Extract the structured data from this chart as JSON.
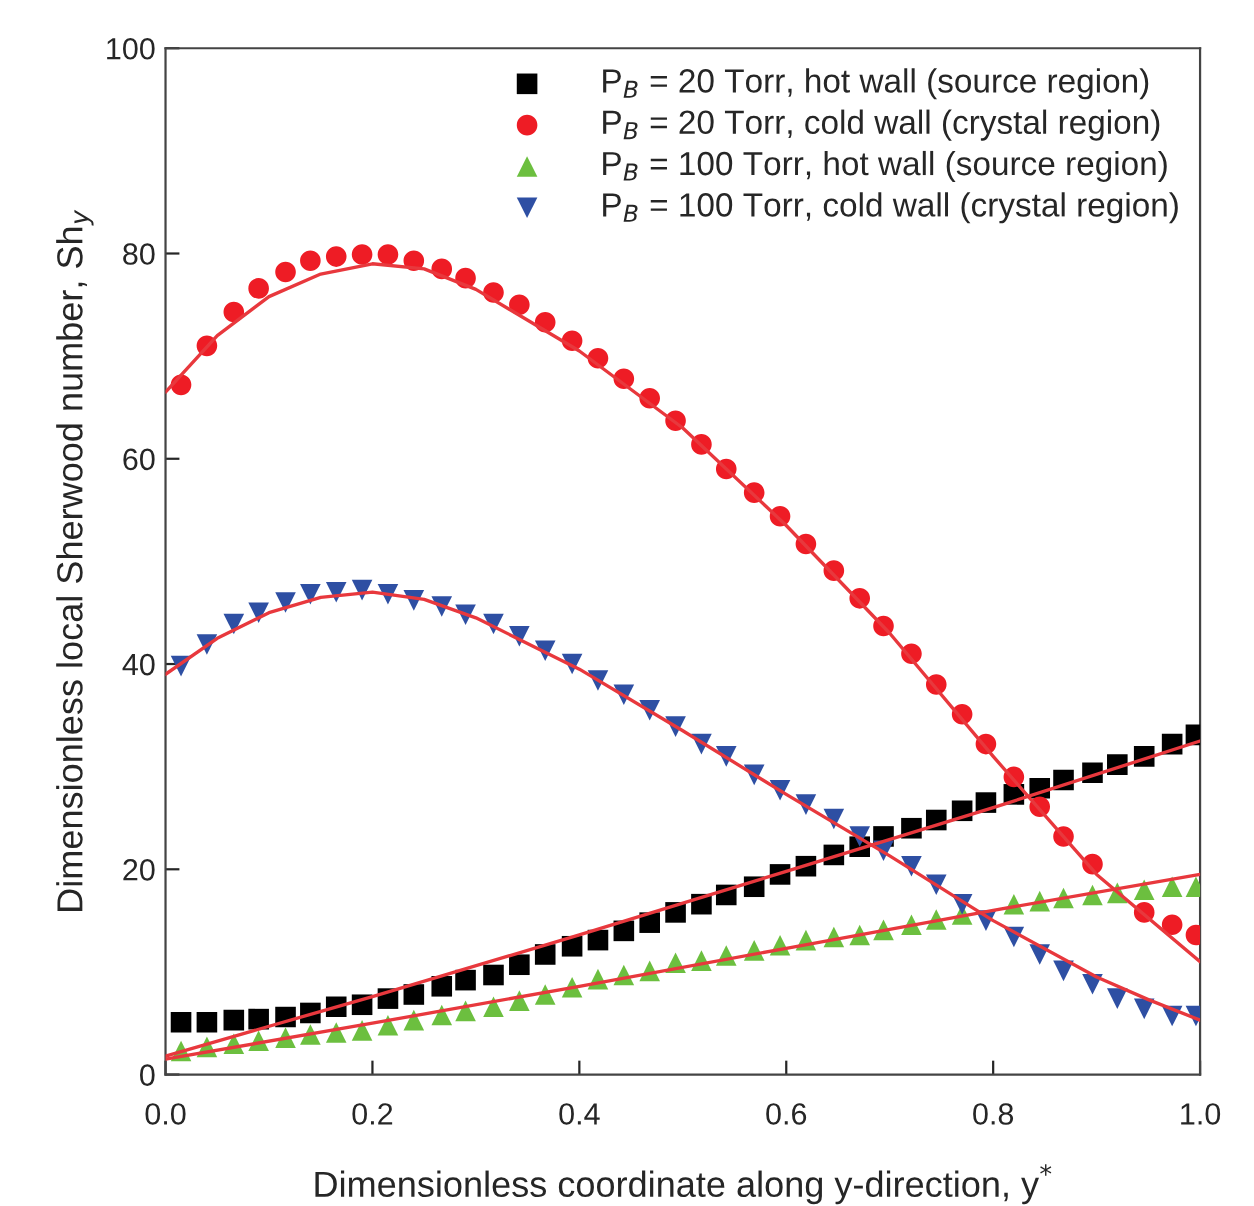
{
  "chart_data": {
    "type": "scatter",
    "xlabel": "Dimensionless coordinate along y-direction, y$^{*}$",
    "ylabel": "Dimensionless local Sherwood number, Sh$_{y}$",
    "xlim": [
      0,
      1
    ],
    "xticks": [
      {
        "value": 0,
        "label": "0.0"
      },
      {
        "value": 0.2,
        "label": "0.2"
      },
      {
        "value": 0.4,
        "label": "0.4"
      },
      {
        "value": 0.6,
        "label": "0.6"
      },
      {
        "value": 0.8,
        "label": "0.8"
      },
      {
        "value": 1,
        "label": "1.0"
      }
    ],
    "ylim": [
      0,
      100
    ],
    "yticks": [
      0,
      20,
      40,
      60,
      80,
      100
    ],
    "grid": false,
    "legend": "top right",
    "x": [
      0.015,
      0.04,
      0.066,
      0.09,
      0.116,
      0.14,
      0.165,
      0.19,
      0.215,
      0.24,
      0.267,
      0.29,
      0.317,
      0.342,
      0.367,
      0.393,
      0.418,
      0.443,
      0.468,
      0.493,
      0.518,
      0.542,
      0.569,
      0.594,
      0.619,
      0.646,
      0.671,
      0.694,
      0.721,
      0.745,
      0.77,
      0.793,
      0.82,
      0.845,
      0.868,
      0.896,
      0.92,
      0.946,
      0.973,
      0.996
    ],
    "series": [
      {
        "name": "P$_{B}$ = 20 Torr, hot wall (source region)",
        "color": "#000000",
        "marker": "square",
        "values": [
          5.1,
          5.1,
          5.3,
          5.4,
          5.6,
          6.0,
          6.6,
          6.8,
          7.4,
          7.8,
          8.6,
          9.2,
          9.7,
          10.7,
          11.7,
          12.5,
          13.1,
          14.0,
          14.8,
          15.8,
          16.6,
          17.5,
          18.3,
          19.5,
          20.3,
          21.4,
          22.2,
          23.2,
          24.0,
          24.8,
          25.7,
          26.5,
          27.3,
          27.9,
          28.7,
          29.4,
          30.2,
          31.0,
          32.2,
          33.1
        ]
      },
      {
        "name": "P$_{B}$ = 20 Torr, cold wall (crystal region)",
        "color": "#ee1c25",
        "marker": "circle",
        "values": [
          67.2,
          71,
          74.3,
          76.6,
          78.2,
          79.3,
          79.7,
          79.9,
          79.9,
          79.3,
          78.5,
          77.6,
          76.2,
          75,
          73.3,
          71.5,
          69.8,
          67.8,
          65.9,
          63.7,
          61.4,
          59,
          56.7,
          54.4,
          51.7,
          49.1,
          46.4,
          43.7,
          41,
          38,
          35.1,
          32.2,
          29,
          26.1,
          23.2,
          20.5,
          null,
          15.8,
          14.6,
          13.6
        ]
      },
      {
        "name": "P$_{B}$ = 100 Torr, hot wall (source region)",
        "color": "#6cbf3f",
        "marker": "triangle",
        "values": [
          2.3,
          2.7,
          3.0,
          3.3,
          3.6,
          3.9,
          4.1,
          4.3,
          4.8,
          5.3,
          5.8,
          6.2,
          6.6,
          7.2,
          7.8,
          8.5,
          9.3,
          9.7,
          10.1,
          10.9,
          11.1,
          11.6,
          12.1,
          12.6,
          13.1,
          13.4,
          13.6,
          14.1,
          14.6,
          15.1,
          15.6,
          null,
          16.6,
          16.9,
          17.2,
          17.5,
          17.7,
          18.0,
          18.3,
          18.3
        ]
      },
      {
        "name": "P$_{B}$ = 100 Torr, cold wall (crystal region)",
        "color": "#2e4fa3",
        "marker": "triangle_down",
        "values": [
          39.8,
          41.9,
          43.9,
          45,
          46,
          46.8,
          47,
          47.2,
          46.8,
          46.2,
          45.6,
          44.8,
          43.9,
          42.7,
          41.3,
          40,
          38.4,
          37,
          35.5,
          33.9,
          32.2,
          31,
          29.2,
          27.7,
          26.3,
          24.9,
          23.2,
          21.8,
          20.3,
          18.5,
          16.6,
          15,
          13.4,
          11.7,
          10.1,
          8.8,
          7.4,
          6.4,
          5.7,
          5.7
        ]
      },
      {
        "type": "line",
        "color": "#e8383d",
        "x": [
          0,
          0.05,
          0.1,
          0.15,
          0.2,
          0.25,
          0.3,
          0.4,
          0.5,
          0.6,
          0.7,
          0.8,
          0.9,
          1.0
        ],
        "values": [
          66.5,
          72,
          75.8,
          78,
          79,
          78.5,
          76.5,
          70.5,
          63,
          53.5,
          43,
          31,
          19.5,
          11
        ]
      },
      {
        "type": "line",
        "color": "#e8383d",
        "x": [
          0,
          0.05,
          0.1,
          0.15,
          0.2,
          0.25,
          0.3,
          0.4,
          0.5,
          0.6,
          0.7,
          0.8,
          0.9,
          0.95,
          1.0
        ],
        "values": [
          39,
          42.5,
          45,
          46.5,
          47,
          46.3,
          44.5,
          39.5,
          33.5,
          27.3,
          21.3,
          15,
          9.5,
          7.3,
          5.3
        ]
      },
      {
        "type": "line",
        "color": "#e8383d",
        "x": [
          0,
          0.2,
          0.4,
          0.6,
          0.8,
          1.0
        ],
        "values": [
          1.8,
          7.6,
          13.6,
          19.8,
          26,
          32.5
        ]
      },
      {
        "type": "line",
        "color": "#e8383d",
        "x": [
          0,
          0.2,
          0.4,
          0.6,
          0.8,
          1.0
        ],
        "values": [
          1.5,
          5,
          8.6,
          12.3,
          16,
          19.5
        ]
      }
    ]
  }
}
